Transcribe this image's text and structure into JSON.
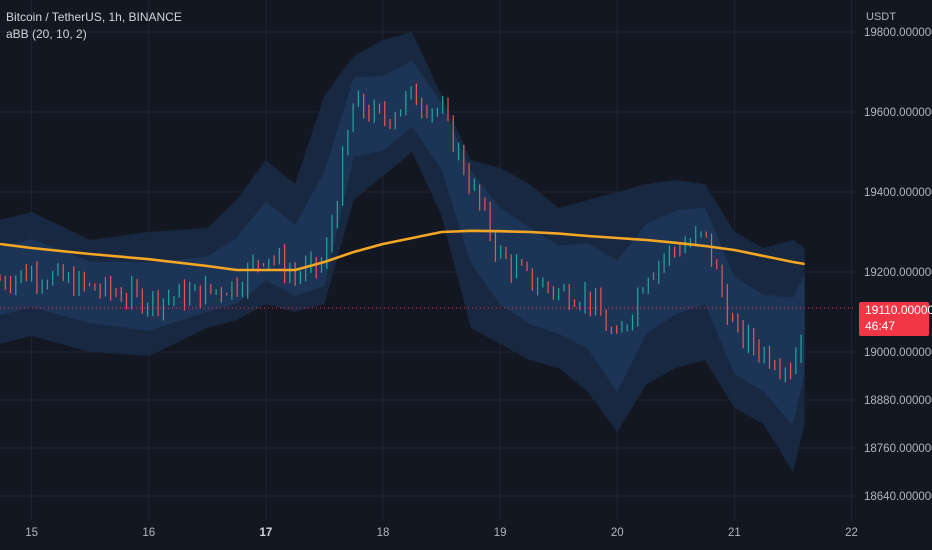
{
  "header": {
    "symbol": "Bitcoin / TetherUS, 1h, BINANCE",
    "indicator": "aBB (20, 10, 2)"
  },
  "axis": {
    "currency": "USDT"
  },
  "last_price": {
    "value": "19110.000000",
    "countdown": "46:47"
  },
  "colors": {
    "background": "#131722",
    "band_outer": "#1a2a44",
    "band_inner": "#1e3a5f",
    "ma": "#f5a623",
    "up": "#26a69a",
    "down": "#ef5350",
    "price_tag": "#f23645"
  },
  "chart_data": {
    "type": "line",
    "title": "Bitcoin / TetherUS, 1h, BINANCE",
    "xlabel": "",
    "ylabel": "USDT",
    "x_ticks": [
      "15",
      "16",
      "17",
      "18",
      "19",
      "20",
      "21",
      "22"
    ],
    "x_tick_positions": [
      15,
      16,
      17,
      18,
      19,
      20,
      21,
      22
    ],
    "bold_tick": "17",
    "y_ticks": [
      "19800.000000",
      "19600.000000",
      "19400.000000",
      "19200.000000",
      "19000.000000",
      "18880.000000",
      "18760.000000",
      "18640.000000"
    ],
    "y_tick_values": [
      19800,
      19600,
      19400,
      19200,
      19000,
      18880,
      18760,
      18640
    ],
    "xlim": [
      14.73,
      22.03
    ],
    "ylim": [
      18580,
      19880
    ],
    "grid": true,
    "series": [
      {
        "name": "aBB (20, 10, 2)",
        "x": [
          14.73,
          15.0,
          15.5,
          16.0,
          16.5,
          16.75,
          17.0,
          17.25,
          17.5,
          17.75,
          18.0,
          18.25,
          18.5,
          18.75,
          19.0,
          19.25,
          19.5,
          19.75,
          20.0,
          20.25,
          20.5,
          20.75,
          21.0,
          21.25,
          21.5,
          21.6
        ],
        "values": [
          19270,
          19260,
          19245,
          19232,
          19215,
          19205,
          19205,
          19205,
          19225,
          19250,
          19270,
          19285,
          19300,
          19303,
          19302,
          19300,
          19296,
          19290,
          19285,
          19280,
          19273,
          19265,
          19255,
          19240,
          19225,
          19220
        ]
      },
      {
        "name": "",
        "x": [
          14.73,
          15.0,
          15.5,
          16.0,
          16.5,
          16.75,
          17.0,
          17.25,
          17.5,
          17.75,
          18.0,
          18.25,
          18.5,
          18.75,
          19.0,
          19.25,
          19.5,
          19.75,
          20.0,
          20.25,
          20.5,
          20.75,
          21.0,
          21.25,
          21.5,
          21.6
        ],
        "values": [
          19180,
          19200,
          19160,
          19130,
          19150,
          19170,
          19250,
          19190,
          19220,
          19620,
          19580,
          19640,
          19600,
          19420,
          19240,
          19180,
          19150,
          19140,
          19020,
          19200,
          19260,
          19290,
          19050,
          19000,
          18960,
          19110
        ]
      }
    ],
    "band_x": [
      14.73,
      15.0,
      15.5,
      16.0,
      16.5,
      16.75,
      17.0,
      17.25,
      17.5,
      17.75,
      18.0,
      18.25,
      18.5,
      18.75,
      19.0,
      19.25,
      19.5,
      19.75,
      20.0,
      20.25,
      20.5,
      20.75,
      21.0,
      21.25,
      21.5,
      21.6
    ],
    "band_upper": [
      19330,
      19350,
      19280,
      19300,
      19310,
      19380,
      19480,
      19420,
      19640,
      19740,
      19780,
      19800,
      19640,
      19480,
      19460,
      19420,
      19360,
      19380,
      19400,
      19420,
      19430,
      19420,
      19300,
      19260,
      19280,
      19260
    ],
    "band_lower": [
      19020,
      19040,
      19000,
      18990,
      19060,
      19080,
      19120,
      19100,
      19120,
      19380,
      19440,
      19500,
      19340,
      19060,
      19020,
      18980,
      18960,
      18900,
      18800,
      18920,
      18960,
      18980,
      18860,
      18820,
      18700,
      18820
    ]
  }
}
